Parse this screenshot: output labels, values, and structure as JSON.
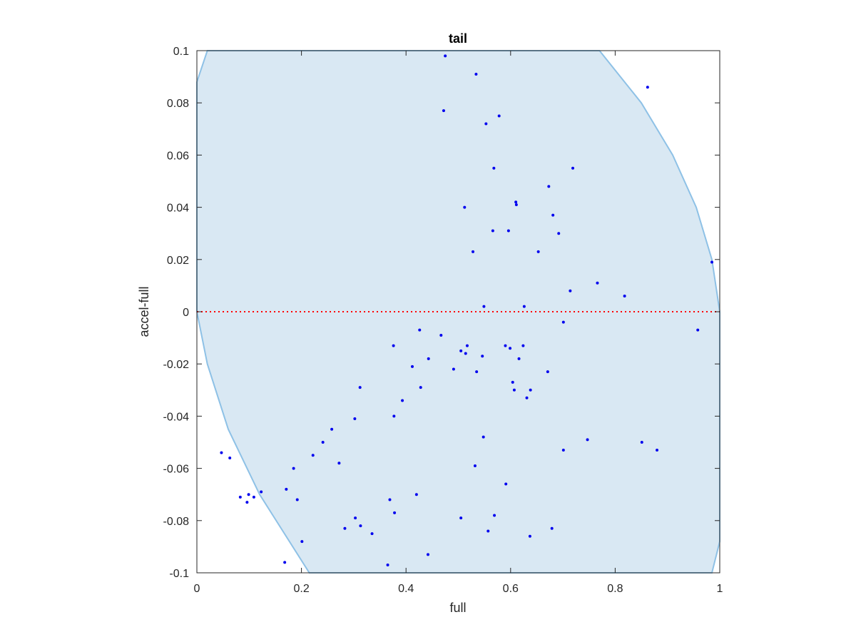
{
  "chart_data": {
    "type": "scatter",
    "title": "tail",
    "xlabel": "full",
    "ylabel": "accel-full",
    "xlim": [
      0,
      1
    ],
    "ylim": [
      -0.1,
      0.1
    ],
    "xticks": [
      "0",
      "0.2",
      "0.4",
      "0.6",
      "0.8",
      "1"
    ],
    "xtick_values": [
      0,
      0.2,
      0.4,
      0.6,
      0.8,
      1
    ],
    "yticks": [
      "0.1",
      "0.08",
      "0.06",
      "0.04",
      "0.02",
      "0",
      "-0.02",
      "-0.04",
      "-0.06",
      "-0.08",
      "-0.1"
    ],
    "ytick_values": [
      0.1,
      0.08,
      0.06,
      0.04,
      0.02,
      0,
      -0.02,
      -0.04,
      -0.06,
      -0.08,
      -0.1
    ],
    "grid": false,
    "reference_line": {
      "y": 0,
      "style": "dotted",
      "color": "#ff0000"
    },
    "region": {
      "description": "shaded feasible region",
      "fill": "#d9e8f3",
      "edge": "#8ec1e6",
      "boundary": [
        [
          0,
          0.088
        ],
        [
          0.02,
          0.1
        ],
        [
          0.77,
          0.1
        ],
        [
          0.85,
          0.08
        ],
        [
          0.91,
          0.06
        ],
        [
          0.955,
          0.04
        ],
        [
          0.985,
          0.02
        ],
        [
          1.0,
          0.0
        ],
        [
          1.0,
          -0.088
        ],
        [
          0.985,
          -0.1
        ],
        [
          0.215,
          -0.1
        ],
        [
          0.12,
          -0.07
        ],
        [
          0.06,
          -0.045
        ],
        [
          0.02,
          -0.02
        ],
        [
          0.0,
          0.0
        ]
      ]
    },
    "series": [
      {
        "color": "#0000ee",
        "marker": "dot",
        "x": [
          0.475,
          0.534,
          0.862,
          0.472,
          0.568,
          0.553,
          0.578,
          0.719,
          0.673,
          0.61,
          0.611,
          0.681,
          0.512,
          0.596,
          0.653,
          0.692,
          0.528,
          0.549,
          0.566,
          0.626,
          0.985,
          0.766,
          0.714,
          0.818,
          0.958,
          0.701,
          0.546,
          0.624,
          0.59,
          0.599,
          0.671,
          0.616,
          0.604,
          0.607,
          0.638,
          0.631,
          0.701,
          0.747,
          0.851,
          0.88,
          0.591,
          0.637,
          0.679,
          0.532,
          0.548,
          0.505,
          0.569,
          0.557,
          0.442,
          0.365,
          0.335,
          0.313,
          0.369,
          0.378,
          0.42,
          0.505,
          0.535,
          0.514,
          0.517,
          0.467,
          0.376,
          0.426,
          0.443,
          0.491,
          0.412,
          0.393,
          0.377,
          0.428,
          0.312,
          0.302,
          0.258,
          0.241,
          0.222,
          0.171,
          0.185,
          0.109,
          0.096,
          0.083,
          0.047,
          0.063,
          0.099,
          0.123,
          0.168,
          0.201,
          0.192,
          0.272,
          0.283,
          0.303
        ],
        "y": [
          0.098,
          0.091,
          0.086,
          0.077,
          0.055,
          0.072,
          0.075,
          0.055,
          0.048,
          0.042,
          0.041,
          0.037,
          0.04,
          0.031,
          0.023,
          0.03,
          0.023,
          0.002,
          0.031,
          0.002,
          0.019,
          0.011,
          0.008,
          0.006,
          -0.007,
          -0.004,
          -0.017,
          -0.013,
          -0.013,
          -0.014,
          -0.023,
          -0.018,
          -0.027,
          -0.03,
          -0.03,
          -0.033,
          -0.053,
          -0.049,
          -0.05,
          -0.053,
          -0.066,
          -0.086,
          -0.083,
          -0.059,
          -0.048,
          -0.079,
          -0.078,
          -0.084,
          -0.093,
          -0.097,
          -0.085,
          -0.082,
          -0.072,
          -0.077,
          -0.07,
          -0.015,
          -0.023,
          -0.016,
          -0.013,
          -0.009,
          -0.013,
          -0.007,
          -0.018,
          -0.022,
          -0.021,
          -0.034,
          -0.04,
          -0.029,
          -0.029,
          -0.041,
          -0.045,
          -0.05,
          -0.055,
          -0.068,
          -0.06,
          -0.071,
          -0.073,
          -0.071,
          -0.054,
          -0.056,
          -0.07,
          -0.069,
          -0.096,
          -0.088,
          -0.072,
          -0.058,
          -0.083,
          -0.079
        ]
      }
    ]
  }
}
